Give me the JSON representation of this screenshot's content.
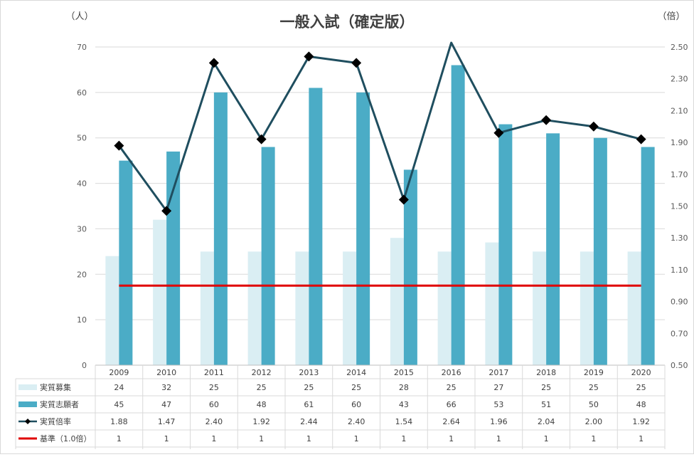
{
  "chart_data": {
    "type": "bar",
    "title": "一般入試（確定版）",
    "y_left_unit": "（人）",
    "y_right_unit": "（倍）",
    "ylim_left": [
      0,
      70
    ],
    "ylim_right": [
      0.5,
      2.5
    ],
    "y_left_ticks": [
      "0",
      "10",
      "20",
      "30",
      "40",
      "50",
      "60",
      "70"
    ],
    "y_right_ticks": [
      "0.50",
      "0.70",
      "0.90",
      "1.10",
      "1.30",
      "1.50",
      "1.70",
      "1.90",
      "2.10",
      "2.30",
      "2.50"
    ],
    "categories": [
      "2009",
      "2010",
      "2011",
      "2012",
      "2013",
      "2014",
      "2015",
      "2016",
      "2017",
      "2018",
      "2019",
      "2020"
    ],
    "series": [
      {
        "name": "実質募集",
        "type": "bar",
        "axis": "left",
        "color": "#daeef3",
        "values": [
          24,
          32,
          25,
          25,
          25,
          25,
          28,
          25,
          27,
          25,
          25,
          25
        ],
        "labels": [
          "24",
          "32",
          "25",
          "25",
          "25",
          "25",
          "28",
          "25",
          "27",
          "25",
          "25",
          "25"
        ]
      },
      {
        "name": "実質志願者",
        "type": "bar",
        "axis": "left",
        "color": "#4bacc6",
        "values": [
          45,
          47,
          60,
          48,
          61,
          60,
          43,
          66,
          53,
          51,
          50,
          48
        ],
        "labels": [
          "45",
          "47",
          "60",
          "48",
          "61",
          "60",
          "43",
          "66",
          "53",
          "51",
          "50",
          "48"
        ]
      },
      {
        "name": "実質倍率",
        "type": "line",
        "axis": "right",
        "color": "#1f4e5f",
        "marker": "diamond",
        "values": [
          1.88,
          1.47,
          2.4,
          1.92,
          2.44,
          2.4,
          1.54,
          2.64,
          1.96,
          2.04,
          2.0,
          1.92
        ],
        "labels": [
          "1.88",
          "1.47",
          "2.40",
          "1.92",
          "2.44",
          "2.40",
          "1.54",
          "2.64",
          "1.96",
          "2.04",
          "2.00",
          "1.92"
        ]
      },
      {
        "name": "基準（1.0倍）",
        "type": "line",
        "axis": "right",
        "color": "#e00000",
        "values": [
          1,
          1,
          1,
          1,
          1,
          1,
          1,
          1,
          1,
          1,
          1,
          1
        ],
        "labels": [
          "1",
          "1",
          "1",
          "1",
          "1",
          "1",
          "1",
          "1",
          "1",
          "1",
          "1",
          "1"
        ]
      }
    ],
    "grid": true,
    "legend": "data-table"
  }
}
